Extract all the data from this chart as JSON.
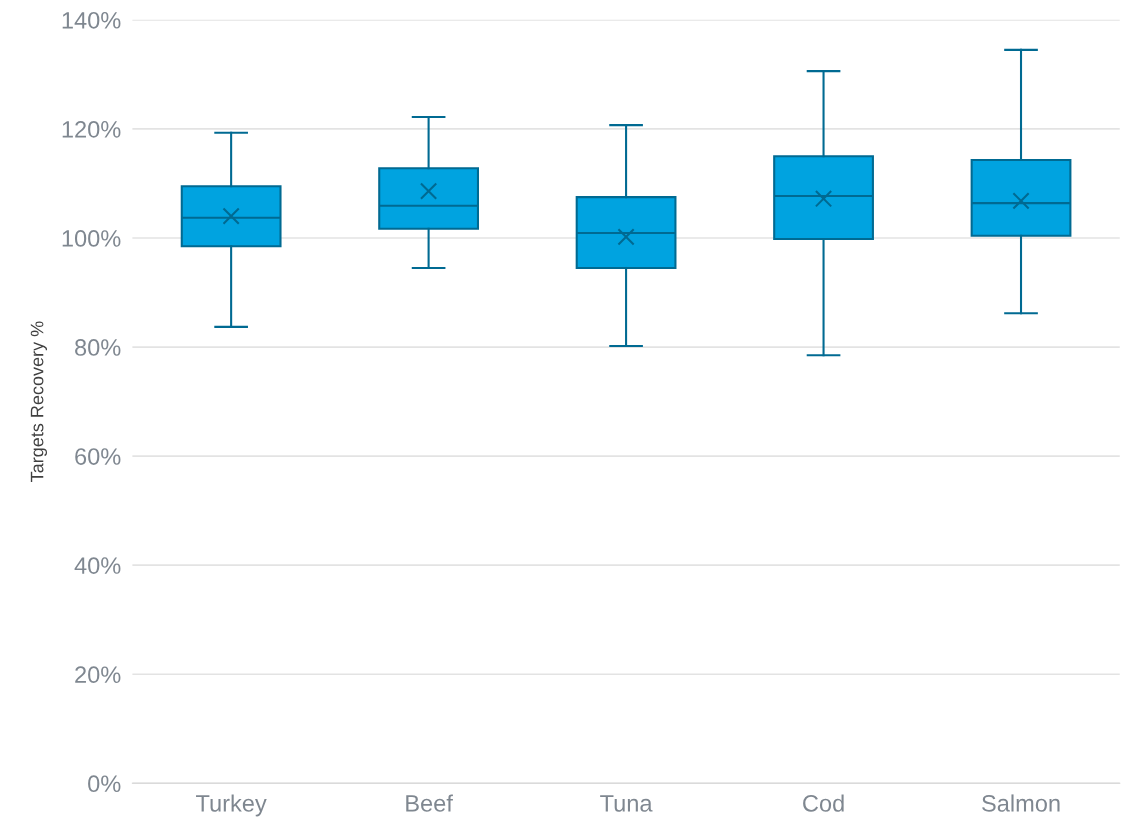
{
  "chart_data": {
    "type": "box",
    "ylabel": "Targets Recovery %",
    "categories": [
      "Turkey",
      "Beef",
      "Tuna",
      "Cod",
      "Salmon"
    ],
    "series": [
      {
        "color": "#00a3e0",
        "boxes": [
          {
            "low": 83.7,
            "q1": 98.5,
            "median": 103.7,
            "q3": 109.5,
            "high": 119.3,
            "mean": 104.0
          },
          {
            "low": 94.5,
            "q1": 101.7,
            "median": 105.9,
            "q3": 112.8,
            "high": 122.2,
            "mean": 108.6
          },
          {
            "low": 80.2,
            "q1": 94.5,
            "median": 100.9,
            "q3": 107.5,
            "high": 120.7,
            "mean": 100.2
          },
          {
            "low": 78.5,
            "q1": 99.8,
            "median": 107.7,
            "q3": 115.0,
            "high": 130.6,
            "mean": 107.2
          },
          {
            "low": 86.2,
            "q1": 100.4,
            "median": 106.4,
            "q3": 114.3,
            "high": 134.5,
            "mean": 106.8
          }
        ]
      }
    ],
    "ylim": [
      0,
      140
    ],
    "yticks": [
      {
        "value": 0,
        "label": "0%"
      },
      {
        "value": 20,
        "label": "20%"
      },
      {
        "value": 40,
        "label": "40%"
      },
      {
        "value": 60,
        "label": "60%"
      },
      {
        "value": 80,
        "label": "80%"
      },
      {
        "value": 100,
        "label": "100%"
      },
      {
        "value": 120,
        "label": "120%"
      },
      {
        "value": 140,
        "label": "140%"
      }
    ],
    "grid": "y",
    "marker": "cross",
    "legend": false
  }
}
